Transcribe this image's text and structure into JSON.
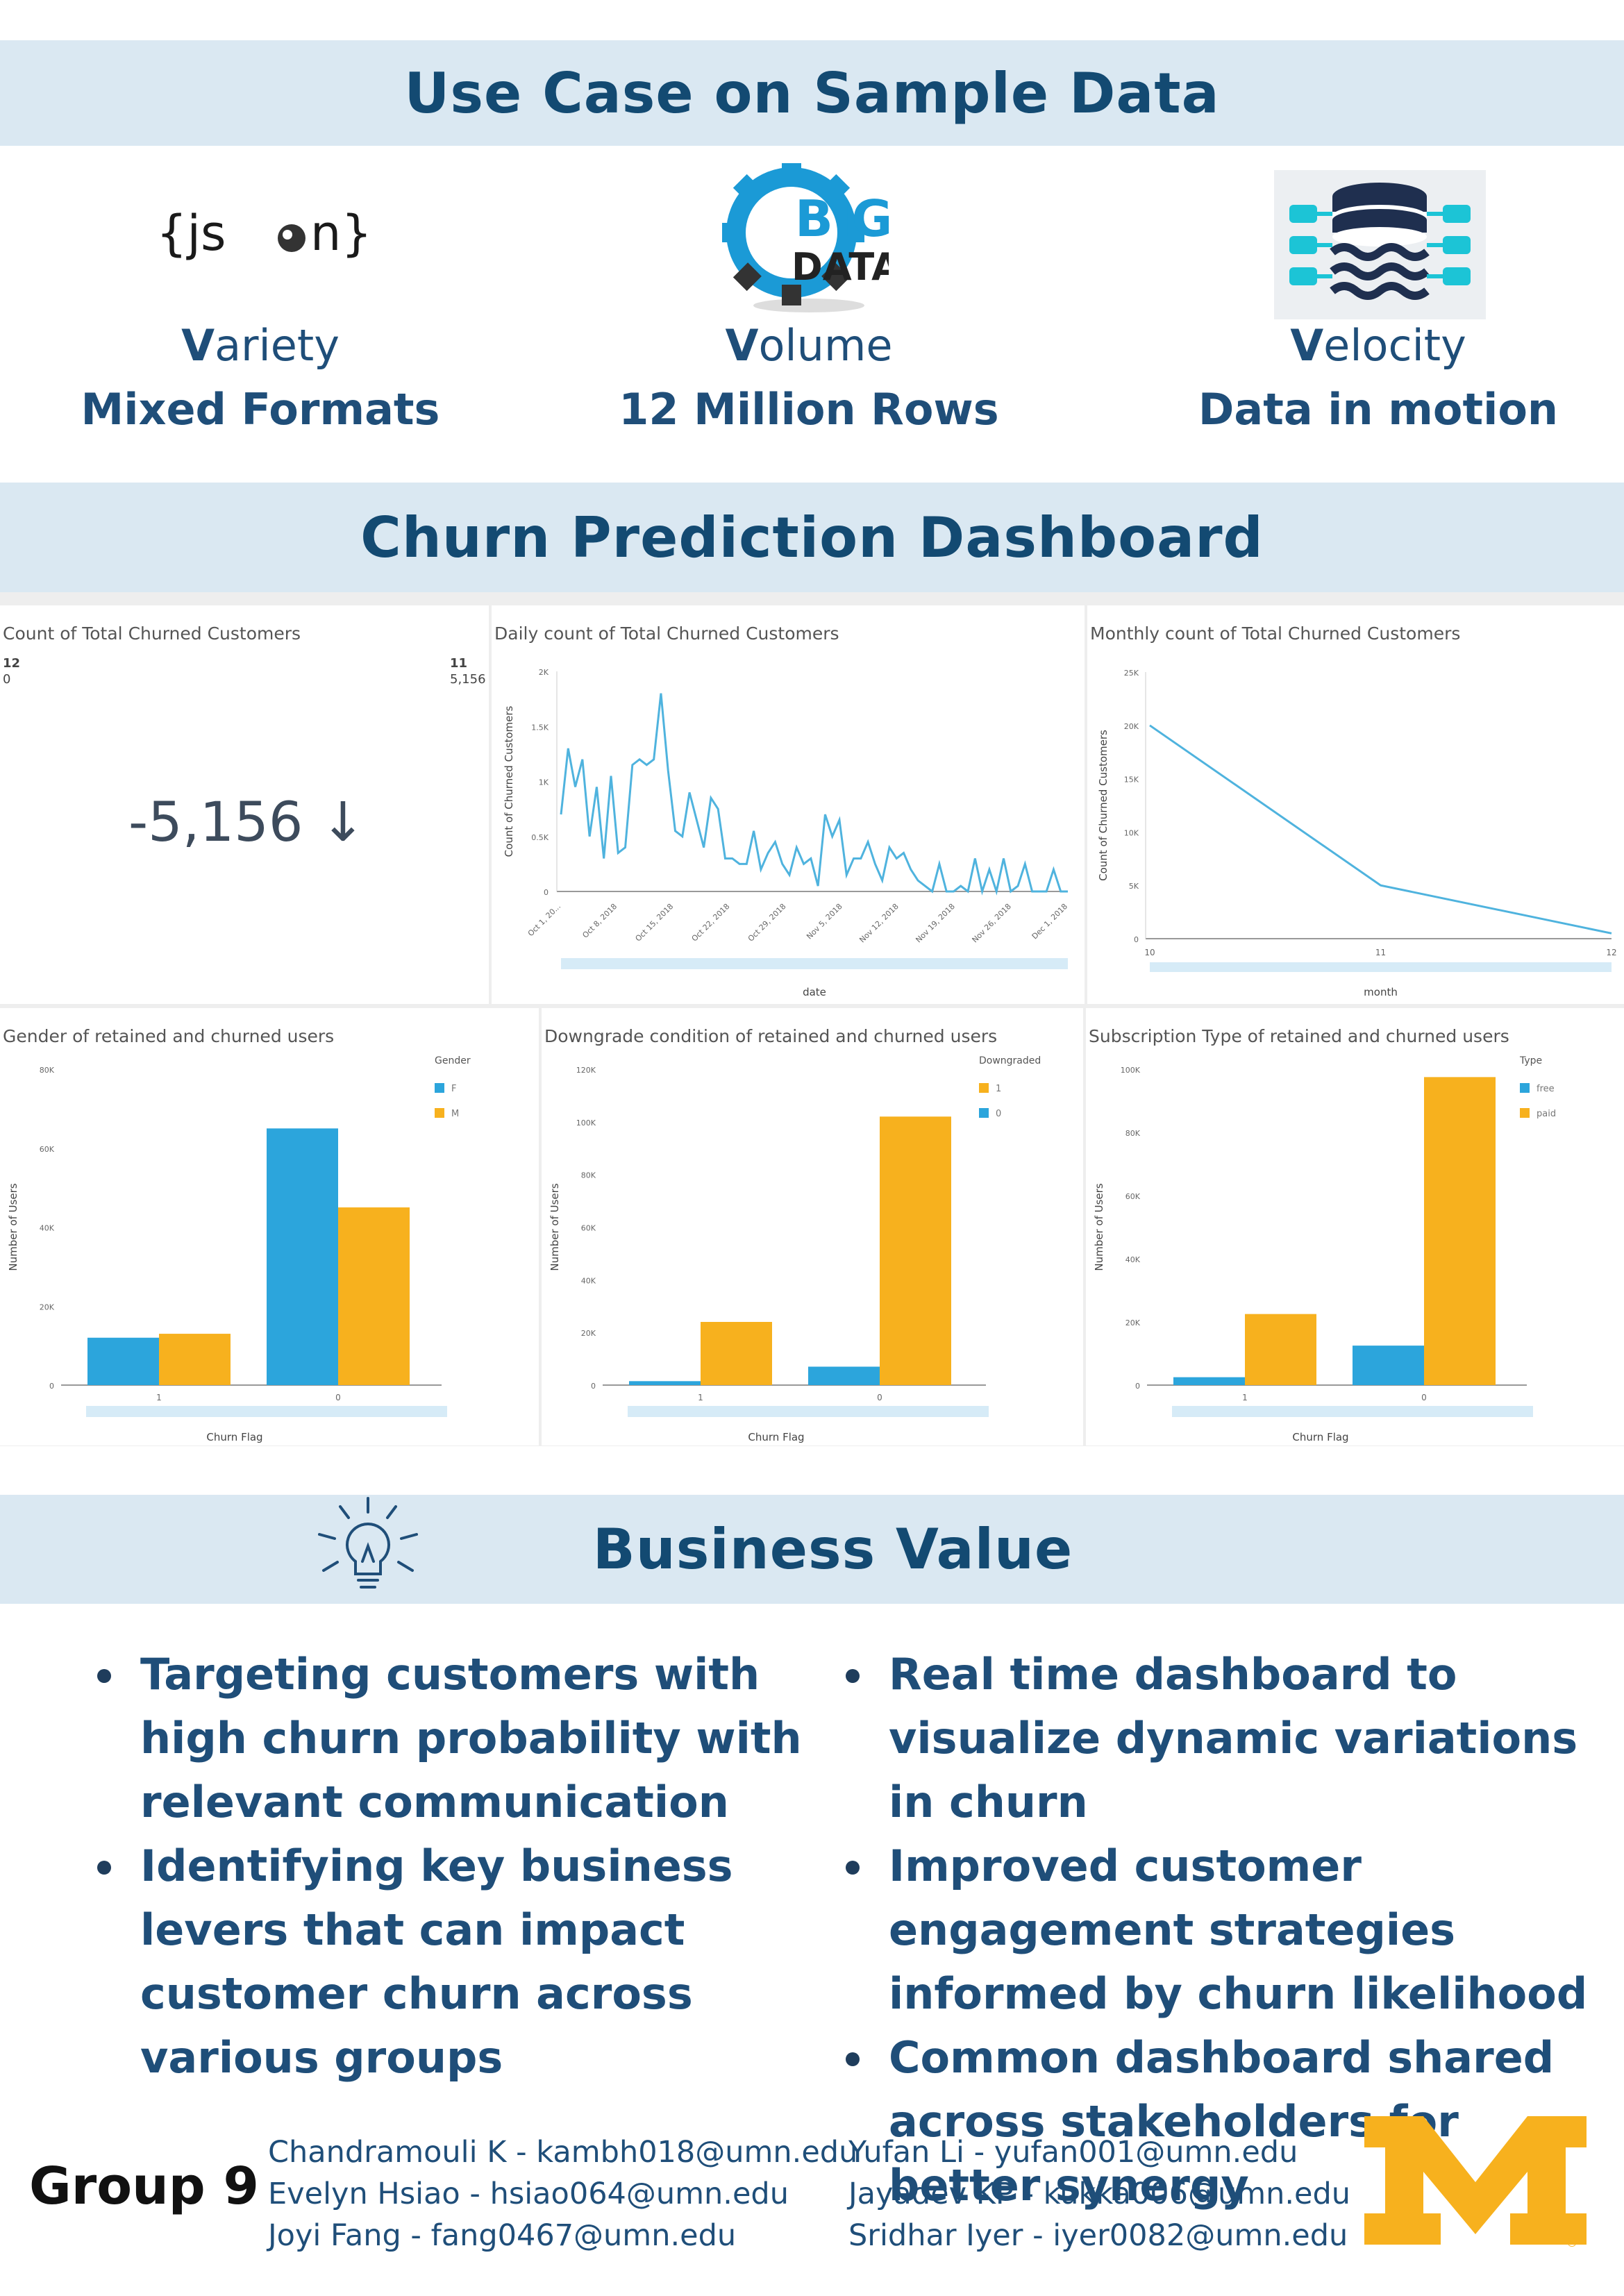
{
  "sections": {
    "use_case_title": "Use Case on Sample Data",
    "dashboard_title": "Churn Prediction Dashboard",
    "business_title": "Business Value"
  },
  "features": [
    {
      "icon": "json-icon",
      "initial": "V",
      "rest": "ariety",
      "subtitle": "Mixed Formats"
    },
    {
      "icon": "big-data-gear-icon",
      "initial": "V",
      "rest": "olume",
      "subtitle": "12 Million Rows"
    },
    {
      "icon": "database-streams-icon",
      "initial": "V",
      "rest": "elocity",
      "subtitle": "Data in motion"
    }
  ],
  "logos": {
    "json_text": "{json}",
    "big_text": "BIG",
    "data_text": "DATA"
  },
  "kpi": {
    "title": "Count of Total Churned Customers",
    "left_top": "12",
    "left_bottom": "0",
    "right_top": "11",
    "right_bottom": "5,156",
    "value": "-5,156 ↓"
  },
  "chart_data": [
    {
      "type": "line",
      "title": "Daily count of Total Churned Customers",
      "xlabel": "date",
      "ylabel": "Count of Churned Customers",
      "ylim": [
        0,
        2000
      ],
      "yticks": [
        "0",
        "0.5K",
        "1K",
        "1.5K",
        "2K"
      ],
      "xticks": [
        "Oct 1, 20...",
        "Oct 8, 2018",
        "Oct 15, 2018",
        "Oct 22, 2018",
        "Oct 29, 2018",
        "Nov 5, 2018",
        "Nov 12, 2018",
        "Nov 19, 2018",
        "Nov 26, 2018",
        "Dec 1, 2018"
      ],
      "values": [
        700,
        1300,
        950,
        1200,
        500,
        950,
        300,
        1050,
        350,
        400,
        1150,
        1200,
        1150,
        1200,
        1800,
        1100,
        550,
        500,
        900,
        650,
        400,
        850,
        750,
        300,
        300,
        250,
        250,
        550,
        200,
        350,
        450,
        250,
        150,
        400,
        250,
        300,
        50,
        700,
        500,
        650,
        150,
        300,
        300,
        450,
        250,
        100,
        400,
        300,
        350,
        200,
        100,
        50,
        0,
        250,
        0,
        0,
        50,
        0,
        300,
        0,
        200,
        0,
        300,
        0,
        50,
        250,
        0,
        0,
        0,
        200,
        0,
        0
      ]
    },
    {
      "type": "line",
      "title": "Monthly count of Total Churned Customers",
      "xlabel": "month",
      "ylabel": "Count of Churned Customers",
      "ylim": [
        0,
        25000
      ],
      "yticks": [
        "0",
        "5K",
        "10K",
        "15K",
        "20K",
        "25K"
      ],
      "categories": [
        "10",
        "11",
        "12"
      ],
      "values": [
        20000,
        5000,
        500
      ]
    },
    {
      "type": "bar",
      "title": "Gender of retained and churned users",
      "xlabel": "Churn Flag",
      "ylabel": "Number of Users",
      "ylim": [
        0,
        80000
      ],
      "yticks": [
        "0",
        "20K",
        "40K",
        "60K",
        "80K"
      ],
      "legend_title": "Gender",
      "categories": [
        "1",
        "0"
      ],
      "series": [
        {
          "name": "F",
          "color": "#2ca5dc",
          "values": [
            12000,
            65000
          ]
        },
        {
          "name": "M",
          "color": "#f7b11e",
          "values": [
            13000,
            45000
          ]
        }
      ]
    },
    {
      "type": "bar",
      "title": "Downgrade condition of retained and churned users",
      "xlabel": "Churn Flag",
      "ylabel": "Number of Users",
      "ylim": [
        0,
        120000
      ],
      "yticks": [
        "0",
        "20K",
        "40K",
        "60K",
        "80K",
        "100K",
        "120K"
      ],
      "legend_title": "Downgraded",
      "categories": [
        "1",
        "0"
      ],
      "series": [
        {
          "name": "0",
          "color": "#2ca5dc",
          "values": [
            1500,
            7000
          ]
        },
        {
          "name": "1",
          "color": "#f7b11e",
          "values": [
            24000,
            102000
          ]
        }
      ]
    },
    {
      "type": "bar",
      "title": "Subscription Type of retained and churned users",
      "xlabel": "Churn Flag",
      "ylabel": "Number of Users",
      "ylim": [
        0,
        100000
      ],
      "yticks": [
        "0",
        "20K",
        "40K",
        "60K",
        "80K",
        "100K"
      ],
      "legend_title": "Type",
      "categories": [
        "1",
        "0"
      ],
      "series": [
        {
          "name": "free",
          "color": "#2ca5dc",
          "values": [
            2500,
            12500
          ]
        },
        {
          "name": "paid",
          "color": "#f7b11e",
          "values": [
            22500,
            97500
          ]
        }
      ]
    }
  ],
  "business_bullets_left": [
    "Targeting customers with high churn probability with relevant communication",
    "Identifying key business levers that can impact customer churn across various groups"
  ],
  "business_bullets_right": [
    "Real time dashboard to visualize dynamic variations in churn",
    "Improved customer engagement strategies informed by churn likelihood",
    "Common dashboard shared across stakeholders for better synergy"
  ],
  "footer": {
    "group": "Group 9",
    "contacts_left": [
      "Chandramouli K - kambh018@umn.edu",
      "Evelyn Hsiao - hsiao064@umn.edu",
      "Joyi Fang - fang0467@umn.edu"
    ],
    "contacts_right": [
      "Yufan Li - yufan001@umn.edu",
      "Jayadev KP - kukka006@umn.edu",
      "Sridhar Iyer - iyer0082@umn.edu"
    ],
    "logo_icon": "university-m-logo",
    "registered": "®"
  },
  "colors": {
    "band": "#dae8f2",
    "heading": "#134a72",
    "text": "#1f4e79",
    "blue": "#2ca5dc",
    "gold": "#f7b11e",
    "line": "#4fb3de"
  }
}
